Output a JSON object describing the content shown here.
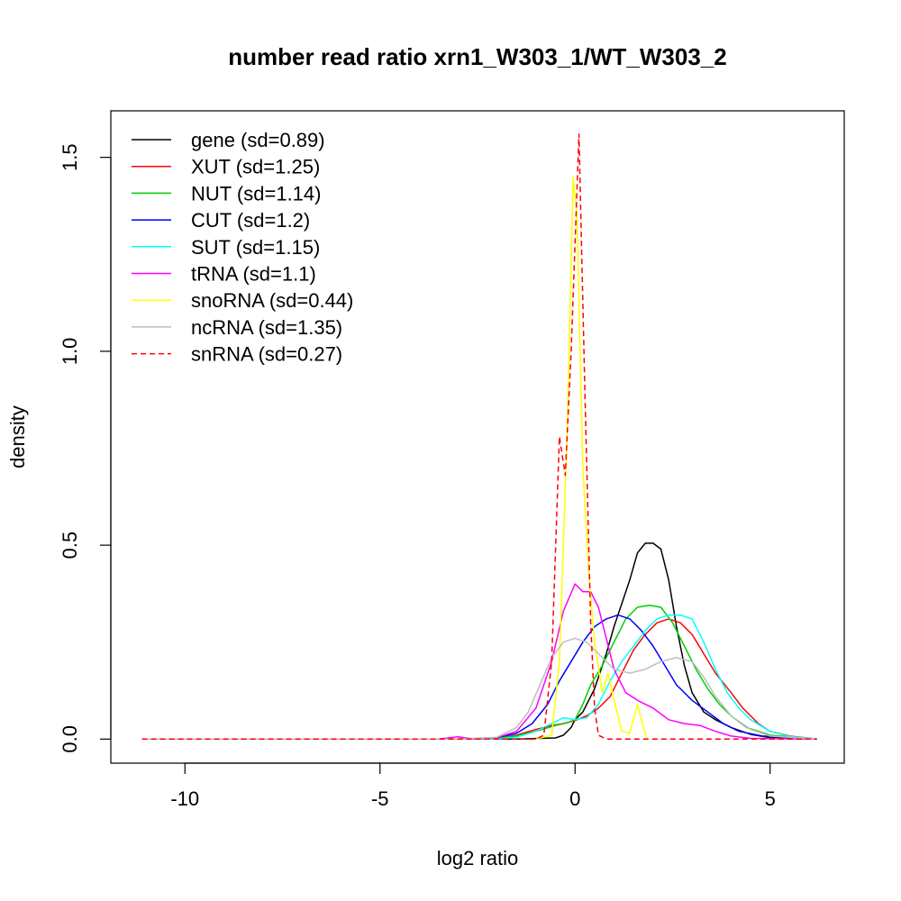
{
  "chart_data": {
    "type": "line",
    "title": "number read ratio xrn1_W303_1/WT_W303_2",
    "xlabel": "log2 ratio",
    "ylabel": "density",
    "xlim": [
      -11.9,
      6.9
    ],
    "ylim": [
      -0.062,
      1.62
    ],
    "x_ticks": [
      -10,
      -5,
      0,
      5
    ],
    "x_tick_labels": [
      "-10",
      "-5",
      "0",
      "5"
    ],
    "y_ticks": [
      0.0,
      0.5,
      1.0,
      1.5
    ],
    "y_tick_labels": [
      "0.0",
      "0.5",
      "1.0",
      "1.5"
    ],
    "grid": false,
    "legend_position": "top-left",
    "series": [
      {
        "name": "gene (sd=0.89)",
        "color": "#000000",
        "dash": false,
        "points": [
          [
            -11.1,
            0
          ],
          [
            -1.5,
            0
          ],
          [
            -0.5,
            0.003
          ],
          [
            -0.3,
            0.01
          ],
          [
            -0.1,
            0.03
          ],
          [
            0,
            0.05
          ],
          [
            0.2,
            0.07
          ],
          [
            0.5,
            0.13
          ],
          [
            0.8,
            0.22
          ],
          [
            1.0,
            0.29
          ],
          [
            1.2,
            0.35
          ],
          [
            1.4,
            0.41
          ],
          [
            1.6,
            0.48
          ],
          [
            1.8,
            0.505
          ],
          [
            2.0,
            0.505
          ],
          [
            2.2,
            0.49
          ],
          [
            2.4,
            0.41
          ],
          [
            2.6,
            0.29
          ],
          [
            2.8,
            0.19
          ],
          [
            3.0,
            0.12
          ],
          [
            3.3,
            0.07
          ],
          [
            3.6,
            0.05
          ],
          [
            4.0,
            0.03
          ],
          [
            4.5,
            0.012
          ],
          [
            5.0,
            0.004
          ],
          [
            6.2,
            0
          ]
        ]
      },
      {
        "name": "XUT (sd=1.25)",
        "color": "#ff0000",
        "dash": false,
        "points": [
          [
            -11.1,
            0
          ],
          [
            -3,
            0
          ],
          [
            -2,
            0.003
          ],
          [
            -1.5,
            0.01
          ],
          [
            -1.0,
            0.025
          ],
          [
            -0.6,
            0.035
          ],
          [
            -0.3,
            0.04
          ],
          [
            0,
            0.048
          ],
          [
            0.3,
            0.06
          ],
          [
            0.6,
            0.08
          ],
          [
            0.9,
            0.11
          ],
          [
            1.2,
            0.17
          ],
          [
            1.5,
            0.23
          ],
          [
            1.8,
            0.27
          ],
          [
            2.1,
            0.3
          ],
          [
            2.4,
            0.31
          ],
          [
            2.7,
            0.3
          ],
          [
            3.0,
            0.27
          ],
          [
            3.3,
            0.22
          ],
          [
            3.6,
            0.17
          ],
          [
            4.0,
            0.12
          ],
          [
            4.3,
            0.08
          ],
          [
            4.7,
            0.04
          ],
          [
            5.0,
            0.02
          ],
          [
            5.5,
            0.008
          ],
          [
            6.2,
            0
          ]
        ]
      },
      {
        "name": "NUT (sd=1.14)",
        "color": "#00cd00",
        "dash": false,
        "points": [
          [
            -11.1,
            0
          ],
          [
            -2.5,
            0
          ],
          [
            -1.5,
            0.008
          ],
          [
            -1.0,
            0.02
          ],
          [
            -0.5,
            0.035
          ],
          [
            -0.2,
            0.042
          ],
          [
            0,
            0.05
          ],
          [
            0.2,
            0.09
          ],
          [
            0.4,
            0.14
          ],
          [
            0.7,
            0.19
          ],
          [
            1.0,
            0.25
          ],
          [
            1.3,
            0.31
          ],
          [
            1.6,
            0.34
          ],
          [
            1.9,
            0.345
          ],
          [
            2.2,
            0.34
          ],
          [
            2.5,
            0.3
          ],
          [
            2.8,
            0.24
          ],
          [
            3.1,
            0.18
          ],
          [
            3.4,
            0.13
          ],
          [
            3.7,
            0.09
          ],
          [
            4.0,
            0.06
          ],
          [
            4.4,
            0.03
          ],
          [
            5.0,
            0.01
          ],
          [
            6.2,
            0
          ]
        ]
      },
      {
        "name": "CUT (sd=1.2)",
        "color": "#0000ff",
        "dash": false,
        "points": [
          [
            -11.1,
            0
          ],
          [
            -3,
            0
          ],
          [
            -2,
            0.004
          ],
          [
            -1.5,
            0.015
          ],
          [
            -1.1,
            0.04
          ],
          [
            -0.7,
            0.09
          ],
          [
            -0.4,
            0.15
          ],
          [
            -0.1,
            0.2
          ],
          [
            0.2,
            0.25
          ],
          [
            0.5,
            0.29
          ],
          [
            0.8,
            0.31
          ],
          [
            1.1,
            0.32
          ],
          [
            1.4,
            0.31
          ],
          [
            1.7,
            0.28
          ],
          [
            2.0,
            0.24
          ],
          [
            2.3,
            0.19
          ],
          [
            2.6,
            0.14
          ],
          [
            3.0,
            0.1
          ],
          [
            3.4,
            0.07
          ],
          [
            3.8,
            0.04
          ],
          [
            4.2,
            0.02
          ],
          [
            4.8,
            0.008
          ],
          [
            6.2,
            0
          ]
        ]
      },
      {
        "name": "SUT (sd=1.15)",
        "color": "#00ffff",
        "dash": false,
        "points": [
          [
            -11.1,
            0
          ],
          [
            -2,
            0
          ],
          [
            -1.5,
            0.005
          ],
          [
            -1.0,
            0.02
          ],
          [
            -0.6,
            0.04
          ],
          [
            -0.3,
            0.055
          ],
          [
            0,
            0.05
          ],
          [
            0.3,
            0.055
          ],
          [
            0.6,
            0.09
          ],
          [
            0.9,
            0.15
          ],
          [
            1.2,
            0.2
          ],
          [
            1.5,
            0.24
          ],
          [
            1.8,
            0.28
          ],
          [
            2.1,
            0.31
          ],
          [
            2.4,
            0.32
          ],
          [
            2.7,
            0.32
          ],
          [
            3.0,
            0.31
          ],
          [
            3.3,
            0.25
          ],
          [
            3.6,
            0.18
          ],
          [
            3.9,
            0.12
          ],
          [
            4.2,
            0.08
          ],
          [
            4.5,
            0.05
          ],
          [
            5.0,
            0.02
          ],
          [
            5.5,
            0.007
          ],
          [
            6.2,
            0
          ]
        ]
      },
      {
        "name": "tRNA (sd=1.1)",
        "color": "#ff00ff",
        "dash": false,
        "points": [
          [
            -11.1,
            0
          ],
          [
            -3.5,
            0
          ],
          [
            -3.0,
            0.006
          ],
          [
            -2.6,
            0
          ],
          [
            -2.0,
            0.004
          ],
          [
            -1.5,
            0.02
          ],
          [
            -1.0,
            0.08
          ],
          [
            -0.6,
            0.2
          ],
          [
            -0.3,
            0.33
          ],
          [
            0,
            0.4
          ],
          [
            0.2,
            0.38
          ],
          [
            0.4,
            0.38
          ],
          [
            0.6,
            0.34
          ],
          [
            0.8,
            0.26
          ],
          [
            1.0,
            0.18
          ],
          [
            1.3,
            0.12
          ],
          [
            1.6,
            0.1
          ],
          [
            2.0,
            0.08
          ],
          [
            2.4,
            0.05
          ],
          [
            2.8,
            0.04
          ],
          [
            3.2,
            0.035
          ],
          [
            3.6,
            0.02
          ],
          [
            4.0,
            0.008
          ],
          [
            4.5,
            0.002
          ],
          [
            6.2,
            0
          ]
        ]
      },
      {
        "name": "snoRNA (sd=0.44)",
        "color": "#ffff00",
        "dash": false,
        "points": [
          [
            -1.0,
            0
          ],
          [
            -0.6,
            0.01
          ],
          [
            -0.4,
            0.2
          ],
          [
            -0.2,
            0.8
          ],
          [
            -0.05,
            1.45
          ],
          [
            0.05,
            1.35
          ],
          [
            0.2,
            0.7
          ],
          [
            0.35,
            0.43
          ],
          [
            0.5,
            0.25
          ],
          [
            0.7,
            0.12
          ],
          [
            0.85,
            0.17
          ],
          [
            1.0,
            0.1
          ],
          [
            1.2,
            0.02
          ],
          [
            1.4,
            0.015
          ],
          [
            1.6,
            0.09
          ],
          [
            1.75,
            0.03
          ],
          [
            1.85,
            0
          ]
        ]
      },
      {
        "name": "ncRNA (sd=1.35)",
        "color": "#bebebe",
        "dash": false,
        "points": [
          [
            -11.1,
            0
          ],
          [
            -3,
            0
          ],
          [
            -2,
            0.005
          ],
          [
            -1.5,
            0.03
          ],
          [
            -1.2,
            0.07
          ],
          [
            -0.9,
            0.14
          ],
          [
            -0.6,
            0.21
          ],
          [
            -0.3,
            0.25
          ],
          [
            0,
            0.26
          ],
          [
            0.3,
            0.25
          ],
          [
            0.6,
            0.22
          ],
          [
            1.0,
            0.18
          ],
          [
            1.4,
            0.17
          ],
          [
            1.8,
            0.18
          ],
          [
            2.2,
            0.2
          ],
          [
            2.6,
            0.21
          ],
          [
            3.0,
            0.2
          ],
          [
            3.3,
            0.16
          ],
          [
            3.6,
            0.11
          ],
          [
            4.0,
            0.06
          ],
          [
            4.5,
            0.025
          ],
          [
            5.0,
            0.008
          ],
          [
            6.2,
            0
          ]
        ]
      },
      {
        "name": "snRNA (sd=0.27)",
        "color": "#ff0000",
        "dash": true,
        "points": [
          [
            -11.1,
            0
          ],
          [
            -1.0,
            0
          ],
          [
            -0.8,
            0.01
          ],
          [
            -0.6,
            0.2
          ],
          [
            -0.4,
            0.78
          ],
          [
            -0.25,
            0.68
          ],
          [
            -0.1,
            1.0
          ],
          [
            0.1,
            1.56
          ],
          [
            0.25,
            0.9
          ],
          [
            0.4,
            0.3
          ],
          [
            0.5,
            0.08
          ],
          [
            0.6,
            0.01
          ],
          [
            0.8,
            0
          ],
          [
            6.2,
            0
          ]
        ]
      }
    ]
  }
}
